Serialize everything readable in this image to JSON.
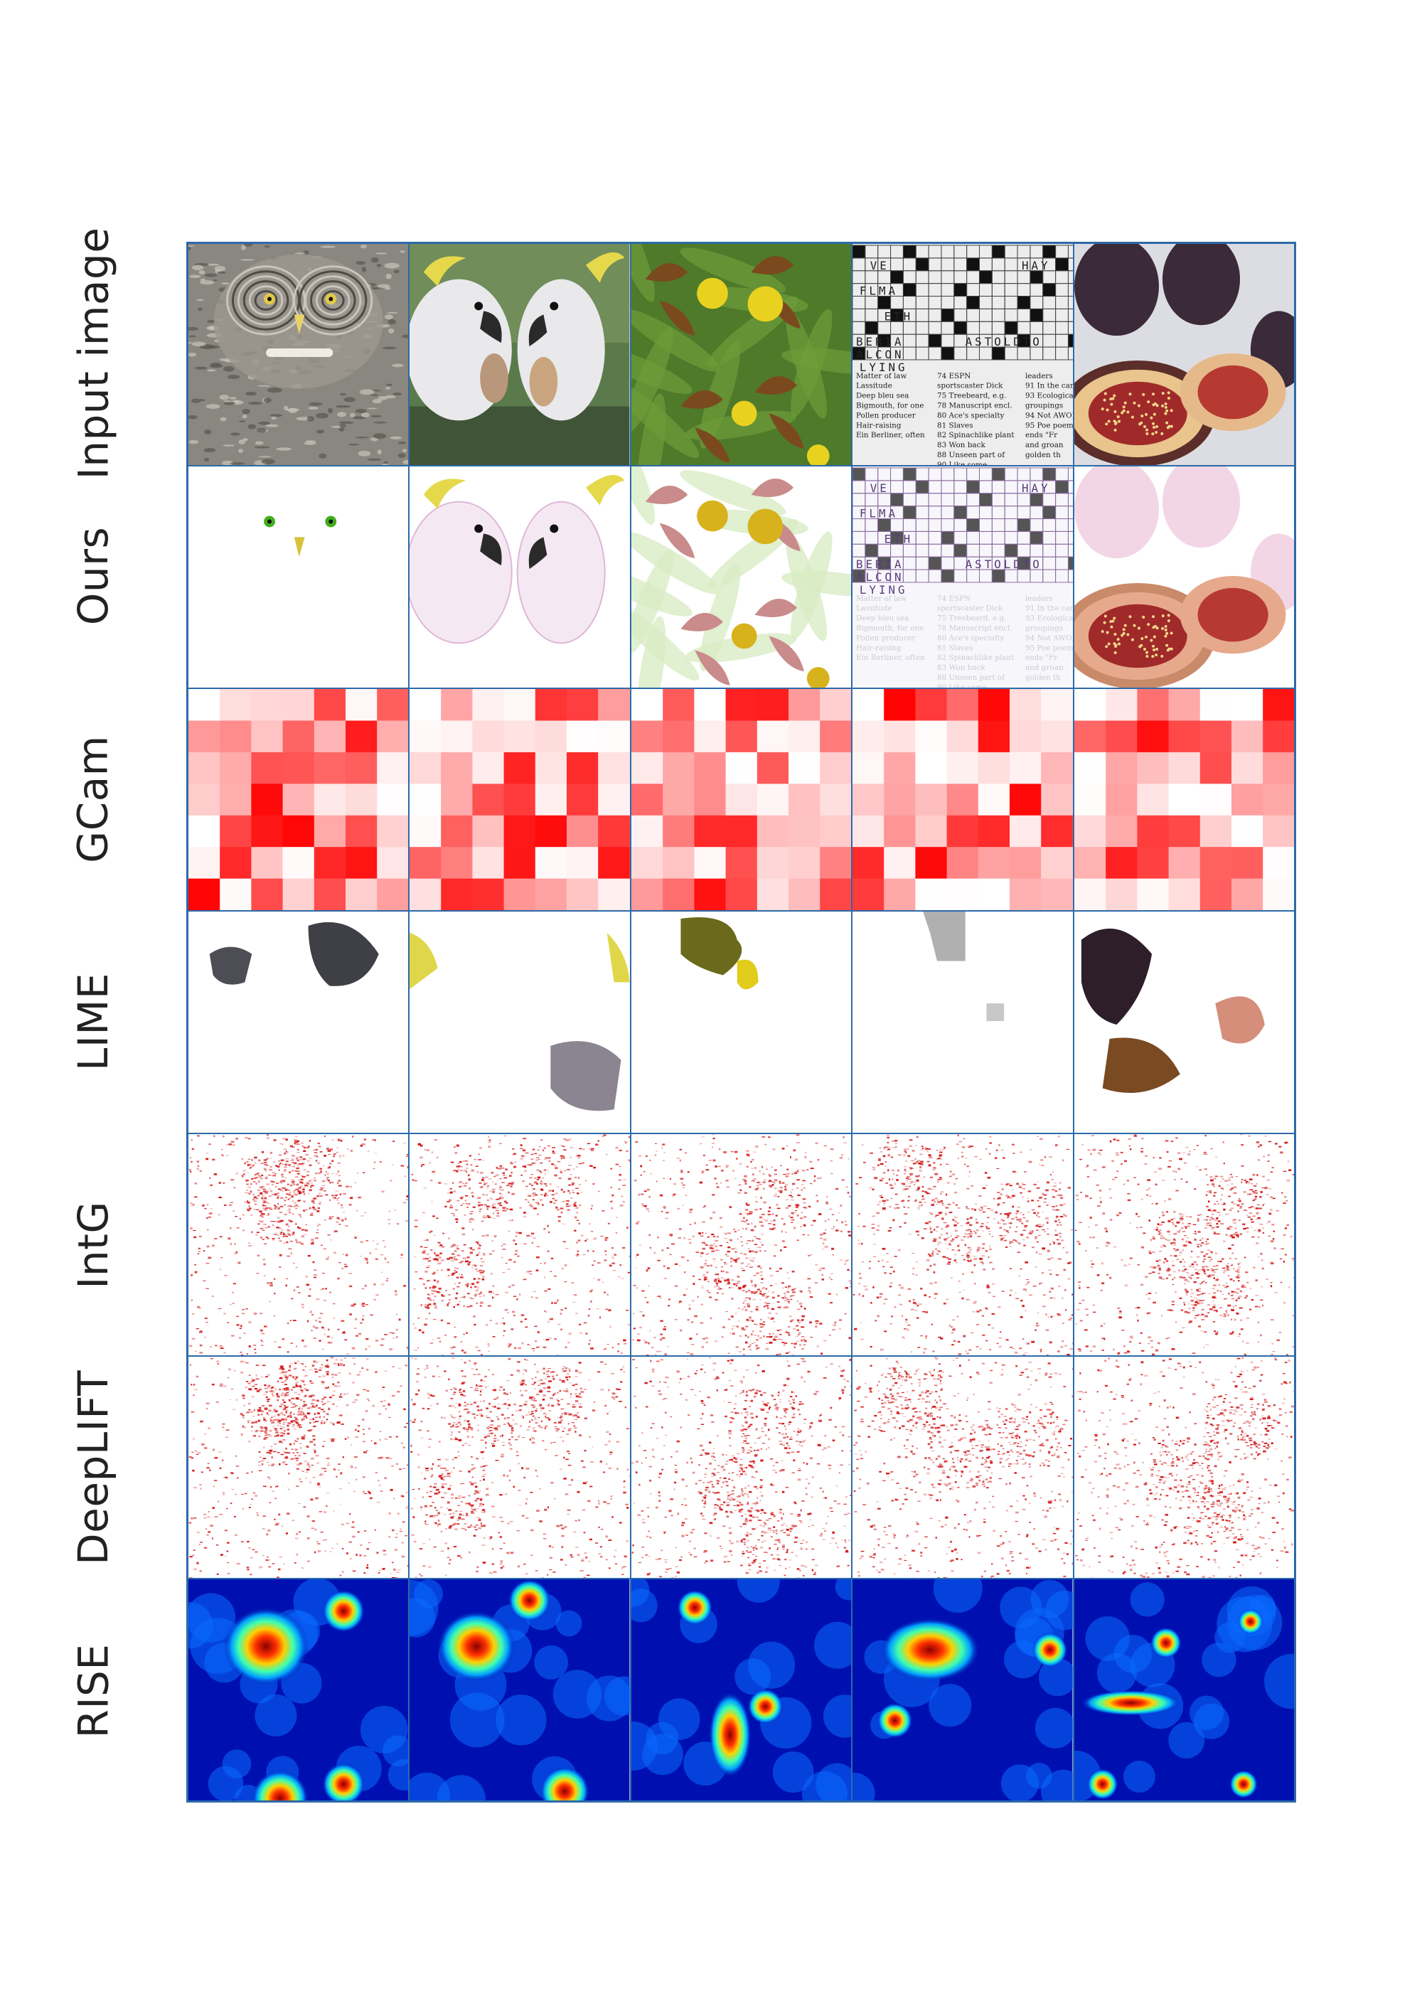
{
  "figure": {
    "row_labels": [
      "Input image",
      "Ours",
      "GCam",
      "LIME",
      "IntG",
      "DeepLIFT",
      "RISE"
    ],
    "crossword_words": [
      "VE",
      "HAY",
      "FLMA",
      "ETH",
      "BERIA",
      "ASTOLDTO",
      "ALCON",
      "LYING"
    ],
    "crossword_clues": [
      "Matter of law",
      "Lassitude",
      "Deep bleu sea",
      "Bigmouth, for one",
      "Pollen producer",
      "Hair-raising",
      "Ein Berliner, often",
      "74 ESPN",
      "sportscaster Dick",
      "75 Treebeard, e.g.",
      "78 Manuscript encl.",
      "80 Ace's specialty",
      "81 Slaves",
      "82 Spinachlike plant",
      "83 Won back",
      "88 Unseen part of",
      "90 Like some",
      "leaders",
      "91 In the card",
      "93 Ecological",
      "groupings",
      "94 Not AWOL",
      "95 Poe poem",
      "ends \"Fr",
      "and groan",
      "golden th"
    ]
  }
}
